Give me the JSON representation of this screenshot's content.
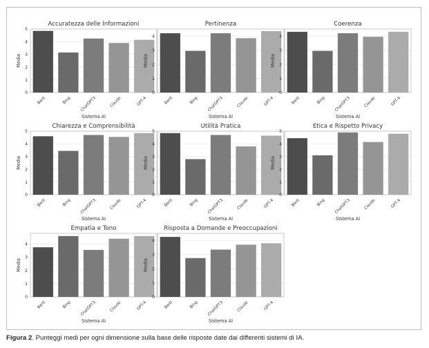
{
  "chart_data": [
    {
      "type": "bar",
      "title": "Accuratezza delle Informazioni",
      "xlabel": "Sistema AI",
      "ylabel": "Media",
      "categories": [
        "Bard",
        "Bing",
        "ChatGPT3",
        "Claude",
        "GPT-4"
      ],
      "values": [
        4.85,
        3.15,
        4.25,
        3.9,
        4.15
      ],
      "ylim": [
        0,
        5
      ]
    },
    {
      "type": "bar",
      "title": "Pertinenza",
      "xlabel": "Sistema AI",
      "ylabel": "Media",
      "categories": [
        "Bard",
        "Bing",
        "ChatGPT3",
        "Claude",
        "GPT-4"
      ],
      "values": [
        4.2,
        2.95,
        4.2,
        3.85,
        4.35
      ],
      "ylim": [
        0,
        4.5
      ]
    },
    {
      "type": "bar",
      "title": "Coerenza",
      "xlabel": "Sistema AI",
      "ylabel": "Media",
      "categories": [
        "Bard",
        "Bing",
        "ChatGPT3",
        "Claude",
        "GPT-4"
      ],
      "values": [
        4.3,
        2.95,
        4.2,
        3.95,
        4.3
      ],
      "ylim": [
        0,
        4.5
      ]
    },
    {
      "type": "bar",
      "title": "Chiarezza e Comprensibilità",
      "xlabel": "Sistema AI",
      "ylabel": "Media",
      "categories": [
        "Bard",
        "Bing",
        "ChatGPT3",
        "Claude",
        "GPT-4"
      ],
      "values": [
        4.6,
        3.45,
        4.7,
        4.55,
        4.85
      ],
      "ylim": [
        0,
        5
      ]
    },
    {
      "type": "bar",
      "title": "Utilità Pratica",
      "xlabel": "Sistema AI",
      "ylabel": "Media",
      "categories": [
        "Bard",
        "Bing",
        "ChatGPT3",
        "Claude",
        "GPT-4"
      ],
      "values": [
        4.85,
        2.8,
        4.7,
        3.8,
        4.65
      ],
      "ylim": [
        0,
        5
      ]
    },
    {
      "type": "bar",
      "title": "Etica e Rispetto Privacy",
      "xlabel": "Sistema AI",
      "ylabel": "Media",
      "categories": [
        "Bard",
        "Bing",
        "ChatGPT3",
        "Claude",
        "GPT-4"
      ],
      "values": [
        4.45,
        3.1,
        4.9,
        4.15,
        4.8
      ],
      "ylim": [
        0,
        5
      ]
    },
    {
      "type": "bar",
      "title": "Empatia e Tono",
      "xlabel": "Sistema AI",
      "ylabel": "Media",
      "categories": [
        "Bard",
        "Bing",
        "ChatGPT3",
        "Claude",
        "GPT-4"
      ],
      "values": [
        3.75,
        4.6,
        3.55,
        4.4,
        4.6
      ],
      "ylim": [
        0,
        4.8
      ]
    },
    {
      "type": "bar",
      "title": "Risposta a Domande e Preoccupazioni",
      "xlabel": "Sistema AI",
      "ylabel": "Media",
      "categories": [
        "Bard",
        "Bing",
        "ChatGPT3",
        "Claude",
        "GPT-4"
      ],
      "values": [
        4.25,
        2.75,
        3.35,
        3.7,
        3.8
      ],
      "ylim": [
        0,
        4.5
      ]
    }
  ],
  "bar_colors": [
    "#4d4d4d",
    "#6a6a6a",
    "#7c7c7c",
    "#959595",
    "#ababab"
  ],
  "grid": true,
  "caption": {
    "label": "Figura 2",
    "text": ". Punteggi medi per ogni dimensione sulla base delle risposte date dai differenti sistemi di IA."
  }
}
